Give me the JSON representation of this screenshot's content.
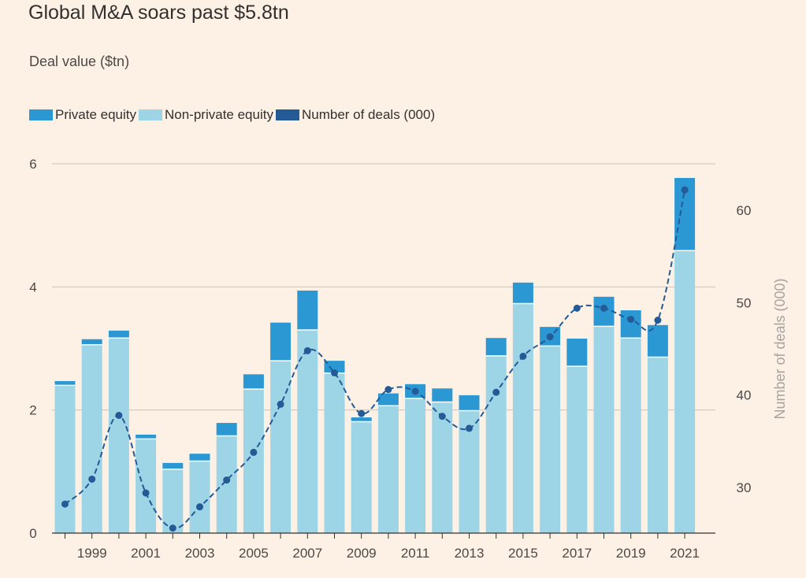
{
  "chart_data": {
    "type": "bar",
    "title": "Global M&A soars past $5.8tn",
    "subtitle": "Deal value ($tn)",
    "legend": [
      {
        "label": "Private equity",
        "color": "#2b97d3"
      },
      {
        "label": "Non-private equity",
        "color": "#9dd5e6"
      },
      {
        "label": "Number of deals (000)",
        "color": "#245a96"
      }
    ],
    "categories": [
      "1998",
      "1999",
      "2000",
      "2001",
      "2002",
      "2003",
      "2004",
      "2005",
      "2006",
      "2007",
      "2008",
      "2009",
      "2010",
      "2011",
      "2012",
      "2013",
      "2014",
      "2015",
      "2016",
      "2017",
      "2018",
      "2019",
      "2020",
      "2021"
    ],
    "x_tick_labels": [
      "1999",
      "2001",
      "2003",
      "2005",
      "2007",
      "2009",
      "2011",
      "2013",
      "2015",
      "2017",
      "2019",
      "2021"
    ],
    "series": [
      {
        "name": "Non-private equity",
        "values": [
          2.4,
          3.06,
          3.17,
          1.53,
          1.04,
          1.17,
          1.58,
          2.34,
          2.8,
          3.3,
          2.6,
          1.81,
          2.07,
          2.19,
          2.13,
          1.99,
          2.88,
          3.73,
          3.04,
          2.71,
          3.36,
          3.17,
          2.86,
          4.59
        ]
      },
      {
        "name": "Private equity",
        "values": [
          0.07,
          0.09,
          0.12,
          0.07,
          0.1,
          0.12,
          0.21,
          0.24,
          0.62,
          0.64,
          0.2,
          0.07,
          0.2,
          0.23,
          0.22,
          0.25,
          0.29,
          0.34,
          0.31,
          0.45,
          0.48,
          0.45,
          0.52,
          1.18
        ]
      },
      {
        "name": "Number of deals (000)",
        "axis": "right",
        "values": [
          28.2,
          30.9,
          37.8,
          29.4,
          25.6,
          27.9,
          30.8,
          33.8,
          39.0,
          44.8,
          42.4,
          38.0,
          40.6,
          40.4,
          37.7,
          36.4,
          40.3,
          44.2,
          46.3,
          49.4,
          49.4,
          48.2,
          48.1,
          62.2
        ]
      }
    ],
    "y_left": {
      "ticks": [
        "0",
        "2",
        "4",
        "6"
      ],
      "ylim": [
        0,
        6
      ]
    },
    "y_right": {
      "label": "Number of deals (000)",
      "ticks": [
        "30",
        "40",
        "50",
        "60"
      ],
      "ylim": [
        25,
        65
      ]
    },
    "grid": true,
    "legend_position": "top-left"
  }
}
